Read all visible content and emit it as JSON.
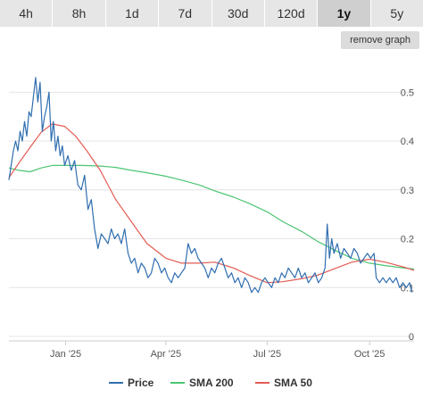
{
  "range_tabs": [
    {
      "label": "4h",
      "active": false
    },
    {
      "label": "8h",
      "active": false
    },
    {
      "label": "1d",
      "active": false
    },
    {
      "label": "7d",
      "active": false
    },
    {
      "label": "30d",
      "active": false
    },
    {
      "label": "120d",
      "active": false
    },
    {
      "label": "1y",
      "active": true
    },
    {
      "label": "5y",
      "active": false
    }
  ],
  "remove_graph_label": "remove graph",
  "chart_data": {
    "type": "line",
    "grid": true,
    "ylim": [
      0,
      0.57
    ],
    "xlim": [
      "2024-11-11",
      "2025-11-10"
    ],
    "y_ticks": [
      {
        "label": "0",
        "value": 0
      },
      {
        "label": "0.1",
        "value": 0.1
      },
      {
        "label": "0.2",
        "value": 0.2
      },
      {
        "label": "0.3",
        "value": 0.3
      },
      {
        "label": "0.4",
        "value": 0.4
      },
      {
        "label": "0.5",
        "value": 0.5
      }
    ],
    "x_ticks": [
      {
        "label": "Jan '25",
        "date": "2025-01-01"
      },
      {
        "label": "Apr '25",
        "date": "2025-04-01"
      },
      {
        "label": "Jul '25",
        "date": "2025-07-01"
      },
      {
        "label": "Oct '25",
        "date": "2025-10-01"
      }
    ],
    "legend_position": "bottom",
    "series": [
      {
        "name": "Price",
        "color": "#2f6eb0",
        "points": [
          [
            "2024-11-11",
            0.32
          ],
          [
            "2024-11-13",
            0.35
          ],
          [
            "2024-11-15",
            0.38
          ],
          [
            "2024-11-17",
            0.4
          ],
          [
            "2024-11-19",
            0.38
          ],
          [
            "2024-11-21",
            0.42
          ],
          [
            "2024-11-23",
            0.4
          ],
          [
            "2024-11-25",
            0.44
          ],
          [
            "2024-11-27",
            0.41
          ],
          [
            "2024-11-29",
            0.46
          ],
          [
            "2024-12-01",
            0.45
          ],
          [
            "2024-12-03",
            0.49
          ],
          [
            "2024-12-05",
            0.53
          ],
          [
            "2024-12-07",
            0.48
          ],
          [
            "2024-12-09",
            0.52
          ],
          [
            "2024-12-11",
            0.42
          ],
          [
            "2024-12-13",
            0.45
          ],
          [
            "2024-12-15",
            0.47
          ],
          [
            "2024-12-17",
            0.5
          ],
          [
            "2024-12-19",
            0.4
          ],
          [
            "2024-12-21",
            0.44
          ],
          [
            "2024-12-23",
            0.38
          ],
          [
            "2024-12-25",
            0.41
          ],
          [
            "2024-12-27",
            0.37
          ],
          [
            "2024-12-29",
            0.39
          ],
          [
            "2024-12-31",
            0.35
          ],
          [
            "2025-01-03",
            0.37
          ],
          [
            "2025-01-06",
            0.34
          ],
          [
            "2025-01-09",
            0.36
          ],
          [
            "2025-01-12",
            0.31
          ],
          [
            "2025-01-15",
            0.3
          ],
          [
            "2025-01-18",
            0.33
          ],
          [
            "2025-01-21",
            0.26
          ],
          [
            "2025-01-24",
            0.28
          ],
          [
            "2025-01-27",
            0.22
          ],
          [
            "2025-01-30",
            0.18
          ],
          [
            "2025-02-02",
            0.21
          ],
          [
            "2025-02-05",
            0.2
          ],
          [
            "2025-02-08",
            0.19
          ],
          [
            "2025-02-11",
            0.22
          ],
          [
            "2025-02-14",
            0.2
          ],
          [
            "2025-02-17",
            0.21
          ],
          [
            "2025-02-20",
            0.19
          ],
          [
            "2025-02-23",
            0.22
          ],
          [
            "2025-02-26",
            0.17
          ],
          [
            "2025-03-01",
            0.15
          ],
          [
            "2025-03-04",
            0.16
          ],
          [
            "2025-03-07",
            0.13
          ],
          [
            "2025-03-10",
            0.15
          ],
          [
            "2025-03-13",
            0.14
          ],
          [
            "2025-03-16",
            0.12
          ],
          [
            "2025-03-19",
            0.13
          ],
          [
            "2025-03-22",
            0.16
          ],
          [
            "2025-03-25",
            0.15
          ],
          [
            "2025-03-28",
            0.13
          ],
          [
            "2025-03-31",
            0.14
          ],
          [
            "2025-04-03",
            0.12
          ],
          [
            "2025-04-06",
            0.11
          ],
          [
            "2025-04-09",
            0.13
          ],
          [
            "2025-04-12",
            0.12
          ],
          [
            "2025-04-15",
            0.13
          ],
          [
            "2025-04-18",
            0.14
          ],
          [
            "2025-04-21",
            0.19
          ],
          [
            "2025-04-24",
            0.17
          ],
          [
            "2025-04-27",
            0.18
          ],
          [
            "2025-04-30",
            0.16
          ],
          [
            "2025-05-03",
            0.15
          ],
          [
            "2025-05-06",
            0.14
          ],
          [
            "2025-05-09",
            0.12
          ],
          [
            "2025-05-12",
            0.14
          ],
          [
            "2025-05-15",
            0.13
          ],
          [
            "2025-05-18",
            0.15
          ],
          [
            "2025-05-21",
            0.16
          ],
          [
            "2025-05-24",
            0.14
          ],
          [
            "2025-05-27",
            0.12
          ],
          [
            "2025-05-30",
            0.13
          ],
          [
            "2025-06-02",
            0.11
          ],
          [
            "2025-06-05",
            0.12
          ],
          [
            "2025-06-08",
            0.1
          ],
          [
            "2025-06-11",
            0.12
          ],
          [
            "2025-06-14",
            0.11
          ],
          [
            "2025-06-17",
            0.09
          ],
          [
            "2025-06-20",
            0.1
          ],
          [
            "2025-06-23",
            0.09
          ],
          [
            "2025-06-26",
            0.11
          ],
          [
            "2025-06-29",
            0.12
          ],
          [
            "2025-07-02",
            0.11
          ],
          [
            "2025-07-05",
            0.1
          ],
          [
            "2025-07-08",
            0.12
          ],
          [
            "2025-07-11",
            0.11
          ],
          [
            "2025-07-14",
            0.13
          ],
          [
            "2025-07-17",
            0.12
          ],
          [
            "2025-07-20",
            0.14
          ],
          [
            "2025-07-23",
            0.13
          ],
          [
            "2025-07-26",
            0.12
          ],
          [
            "2025-07-29",
            0.14
          ],
          [
            "2025-08-01",
            0.12
          ],
          [
            "2025-08-04",
            0.13
          ],
          [
            "2025-08-07",
            0.11
          ],
          [
            "2025-08-10",
            0.12
          ],
          [
            "2025-08-13",
            0.13
          ],
          [
            "2025-08-16",
            0.11
          ],
          [
            "2025-08-19",
            0.12
          ],
          [
            "2025-08-22",
            0.14
          ],
          [
            "2025-08-24",
            0.23
          ],
          [
            "2025-08-26",
            0.16
          ],
          [
            "2025-08-28",
            0.2
          ],
          [
            "2025-08-30",
            0.17
          ],
          [
            "2025-09-02",
            0.19
          ],
          [
            "2025-09-05",
            0.16
          ],
          [
            "2025-09-08",
            0.18
          ],
          [
            "2025-09-11",
            0.17
          ],
          [
            "2025-09-14",
            0.16
          ],
          [
            "2025-09-17",
            0.18
          ],
          [
            "2025-09-20",
            0.17
          ],
          [
            "2025-09-23",
            0.15
          ],
          [
            "2025-09-26",
            0.16
          ],
          [
            "2025-09-29",
            0.17
          ],
          [
            "2025-10-02",
            0.16
          ],
          [
            "2025-10-05",
            0.17
          ],
          [
            "2025-10-07",
            0.12
          ],
          [
            "2025-10-10",
            0.11
          ],
          [
            "2025-10-13",
            0.12
          ],
          [
            "2025-10-16",
            0.11
          ],
          [
            "2025-10-19",
            0.12
          ],
          [
            "2025-10-22",
            0.11
          ],
          [
            "2025-10-25",
            0.12
          ],
          [
            "2025-10-28",
            0.1
          ],
          [
            "2025-10-31",
            0.11
          ],
          [
            "2025-11-03",
            0.1
          ],
          [
            "2025-11-06",
            0.11
          ],
          [
            "2025-11-08",
            0.09
          ]
        ]
      },
      {
        "name": "SMA 200",
        "color": "#4cc572",
        "points": [
          [
            "2024-11-11",
            0.345
          ],
          [
            "2024-11-20",
            0.34
          ],
          [
            "2024-11-30",
            0.337
          ],
          [
            "2024-12-10",
            0.345
          ],
          [
            "2024-12-20",
            0.35
          ],
          [
            "2025-01-01",
            0.35
          ],
          [
            "2025-01-15",
            0.35
          ],
          [
            "2025-01-31",
            0.349
          ],
          [
            "2025-02-15",
            0.346
          ],
          [
            "2025-03-01",
            0.34
          ],
          [
            "2025-03-15",
            0.335
          ],
          [
            "2025-04-01",
            0.328
          ],
          [
            "2025-04-15",
            0.32
          ],
          [
            "2025-05-01",
            0.31
          ],
          [
            "2025-05-15",
            0.298
          ],
          [
            "2025-06-01",
            0.285
          ],
          [
            "2025-06-15",
            0.272
          ],
          [
            "2025-07-01",
            0.255
          ],
          [
            "2025-07-15",
            0.235
          ],
          [
            "2025-08-01",
            0.215
          ],
          [
            "2025-08-15",
            0.195
          ],
          [
            "2025-09-01",
            0.175
          ],
          [
            "2025-09-15",
            0.16
          ],
          [
            "2025-10-01",
            0.15
          ],
          [
            "2025-10-15",
            0.145
          ],
          [
            "2025-11-01",
            0.14
          ],
          [
            "2025-11-10",
            0.138
          ]
        ]
      },
      {
        "name": "SMA 50",
        "color": "#e35b52",
        "points": [
          [
            "2024-11-11",
            0.325
          ],
          [
            "2024-11-20",
            0.355
          ],
          [
            "2024-12-01",
            0.39
          ],
          [
            "2024-12-10",
            0.418
          ],
          [
            "2024-12-20",
            0.435
          ],
          [
            "2024-12-31",
            0.43
          ],
          [
            "2025-01-10",
            0.41
          ],
          [
            "2025-01-20",
            0.38
          ],
          [
            "2025-02-01",
            0.34
          ],
          [
            "2025-02-15",
            0.28
          ],
          [
            "2025-03-01",
            0.235
          ],
          [
            "2025-03-15",
            0.19
          ],
          [
            "2025-04-01",
            0.16
          ],
          [
            "2025-04-15",
            0.15
          ],
          [
            "2025-05-01",
            0.15
          ],
          [
            "2025-05-15",
            0.152
          ],
          [
            "2025-06-01",
            0.14
          ],
          [
            "2025-06-15",
            0.125
          ],
          [
            "2025-07-01",
            0.11
          ],
          [
            "2025-07-15",
            0.112
          ],
          [
            "2025-08-01",
            0.118
          ],
          [
            "2025-08-15",
            0.125
          ],
          [
            "2025-09-01",
            0.14
          ],
          [
            "2025-09-15",
            0.152
          ],
          [
            "2025-10-01",
            0.158
          ],
          [
            "2025-10-15",
            0.152
          ],
          [
            "2025-11-01",
            0.142
          ],
          [
            "2025-11-10",
            0.135
          ]
        ]
      }
    ]
  }
}
